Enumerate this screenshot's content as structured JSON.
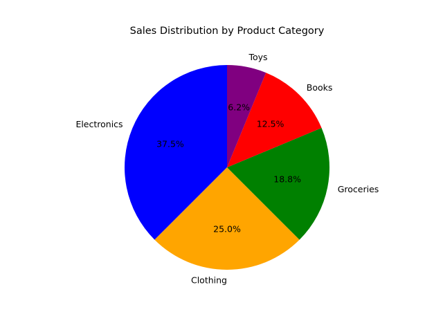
{
  "chart_data": {
    "type": "pie",
    "title": "Sales Distribution by Product Category",
    "categories": [
      "Electronics",
      "Clothing",
      "Groceries",
      "Books",
      "Toys"
    ],
    "values": [
      37.5,
      25.0,
      18.8,
      12.5,
      6.2
    ],
    "value_labels": [
      "37.5%",
      "25.0%",
      "18.8%",
      "12.5%",
      "6.2%"
    ],
    "colors": [
      "#0000ff",
      "#ffa500",
      "#008000",
      "#ff0000",
      "#800080"
    ],
    "start_angle_deg": 90,
    "direction": "counterclockwise",
    "legend": "none",
    "grid": false
  }
}
